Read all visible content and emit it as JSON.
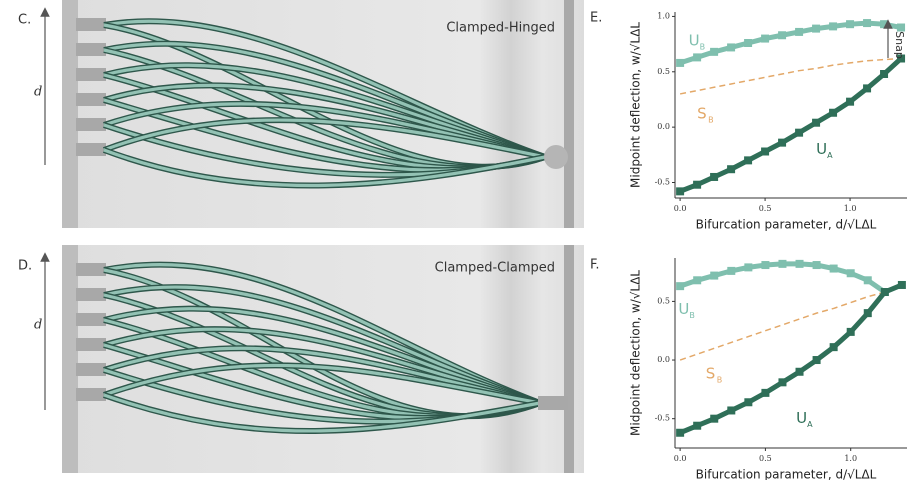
{
  "panels": [
    {
      "letter": "C.",
      "title": "Clamped-Hinged",
      "axis_label": "d"
    },
    {
      "letter": "D.",
      "title": "Clamped-Clamped",
      "axis_label": "d"
    }
  ],
  "chart_data": [
    {
      "type": "line",
      "panel_letter": "E.",
      "annotation": "Snap",
      "xlabel": "Bifurcation parameter, d/√LΔL",
      "ylabel": "Midpoint deflection, w/√LΔL",
      "x": [
        0,
        0.1,
        0.2,
        0.3,
        0.4,
        0.5,
        0.6,
        0.7,
        0.8,
        0.9,
        1.0,
        1.1,
        1.2,
        1.3
      ],
      "xlim": [
        -0.03,
        1.335
      ],
      "ylim": [
        -0.64,
        1.04
      ],
      "xticks": [
        {
          "value": 0,
          "label": "0.0"
        },
        0.5,
        {
          "value": 1,
          "label": "1.0"
        }
      ],
      "yticks": [
        -0.5,
        {
          "value": 0,
          "label": "0.0"
        },
        0.5,
        {
          "value": 1,
          "label": "1.0"
        }
      ],
      "series": [
        {
          "name": "U",
          "subscript": "B",
          "color": "#7fbfae",
          "marker": "square",
          "values": [
            0.58,
            0.63,
            0.68,
            0.72,
            0.76,
            0.8,
            0.83,
            0.86,
            0.89,
            0.91,
            0.93,
            0.94,
            0.93,
            0.9
          ]
        },
        {
          "name": "S",
          "subscript": "B",
          "color": "#e3a868",
          "marker": "dashed",
          "values": [
            0.3,
            0.33,
            0.36,
            0.39,
            0.42,
            0.45,
            0.48,
            0.51,
            0.53,
            0.56,
            0.58,
            0.6,
            0.61,
            0.62
          ]
        },
        {
          "name": "U",
          "subscript": "A",
          "color": "#2f6f58",
          "marker": "square",
          "values": [
            -0.58,
            -0.52,
            -0.45,
            -0.38,
            -0.3,
            -0.22,
            -0.14,
            -0.05,
            0.04,
            0.13,
            0.23,
            0.35,
            0.48,
            0.62
          ]
        }
      ]
    },
    {
      "type": "line",
      "panel_letter": "F.",
      "xlabel": "Bifurcation parameter, d/√LΔL",
      "ylabel": "Midpoint deflection, w/√LΔL",
      "x": [
        0,
        0.1,
        0.2,
        0.3,
        0.4,
        0.5,
        0.6,
        0.7,
        0.8,
        0.9,
        1.0,
        1.1,
        1.2,
        1.3
      ],
      "xlim": [
        -0.03,
        1.33
      ],
      "ylim": [
        -0.75,
        0.87
      ],
      "xticks": [
        {
          "value": 0,
          "label": "0.0"
        },
        0.5,
        {
          "value": 1,
          "label": "1.0"
        }
      ],
      "yticks": [
        -0.5,
        {
          "value": 0,
          "label": "0.0"
        },
        0.5
      ],
      "series": [
        {
          "name": "U",
          "subscript": "B",
          "color": "#7fbfae",
          "marker": "square",
          "values": [
            0.63,
            0.68,
            0.72,
            0.76,
            0.79,
            0.81,
            0.82,
            0.82,
            0.81,
            0.78,
            0.74,
            0.68,
            0.58,
            null
          ]
        },
        {
          "name": "S",
          "subscript": "B",
          "color": "#e3a868",
          "marker": "dashed",
          "values": [
            0.0,
            0.05,
            0.1,
            0.15,
            0.2,
            0.25,
            0.3,
            0.35,
            0.4,
            0.44,
            0.49,
            0.54,
            0.58,
            null
          ]
        },
        {
          "name": "U",
          "subscript": "A",
          "color": "#2f6f58",
          "marker": "square",
          "values": [
            -0.62,
            -0.56,
            -0.5,
            -0.43,
            -0.36,
            -0.28,
            -0.19,
            -0.1,
            0.0,
            0.11,
            0.24,
            0.4,
            0.58,
            0.64
          ]
        }
      ]
    }
  ]
}
